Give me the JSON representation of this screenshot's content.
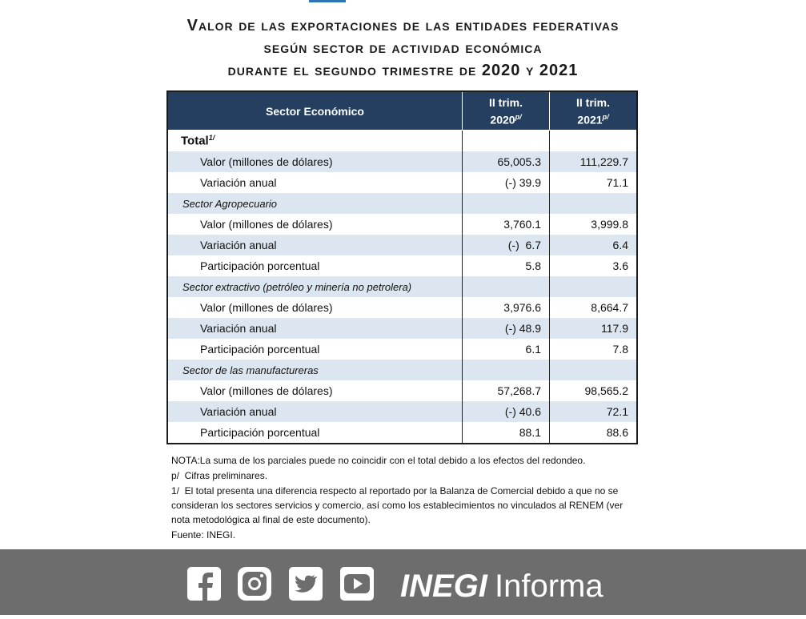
{
  "title": {
    "lines": [
      "Valor de las exportaciones de las entidades federativas",
      "según sector de actividad económica",
      "durante el segundo trimestre de 2020 y 2021"
    ]
  },
  "table": {
    "header": {
      "sector": "Sector Económico",
      "columns": [
        {
          "label": "II trim.",
          "year": "2020",
          "note": "p/"
        },
        {
          "label": "II trim.",
          "year": "2021",
          "note": "p/"
        }
      ]
    },
    "rows": [
      {
        "label": "Total",
        "note": "1/"
      },
      {
        "label": "Valor (millones de dólares)",
        "values": [
          "65,005.3",
          "111,229.7"
        ]
      },
      {
        "label": "Variación anual",
        "values": [
          "(-) 39.9",
          "71.1"
        ]
      },
      {
        "label": "Sector Agropecuario"
      },
      {
        "label": "Valor (millones de dólares)",
        "values": [
          "3,760.1",
          "3,999.8"
        ]
      },
      {
        "label": "Variación anual",
        "values": [
          "(-)  6.7",
          "6.4"
        ]
      },
      {
        "label": "Participación porcentual",
        "values": [
          "5.8",
          "3.6"
        ]
      },
      {
        "label": "Sector extractivo (petróleo y minería no petrolera)"
      },
      {
        "label": "Valor (millones de dólares)",
        "values": [
          "3,976.6",
          "8,664.7"
        ]
      },
      {
        "label": "Variación anual",
        "values": [
          "(-) 48.9",
          "117.9"
        ]
      },
      {
        "label": "Participación porcentual",
        "values": [
          "6.1",
          "7.8"
        ]
      },
      {
        "label": "Sector de las manufactureras"
      },
      {
        "label": "Valor (millones de dólares)",
        "values": [
          "57,268.7",
          "98,565.2"
        ]
      },
      {
        "label": "Variación anual",
        "values": [
          "(-) 40.6",
          "72.1"
        ]
      },
      {
        "label": "Participación porcentual",
        "values": [
          "88.1",
          "88.6"
        ]
      }
    ]
  },
  "notes": [
    "NOTA:La suma de los parciales puede no coincidir con el total debido a los efectos del redondeo.",
    "p/  Cifras preliminares.",
    "1/  El total presenta una diferencia respecto al reportado por la Balanza de Comercial debido a que no se consideran los sectores servicios y comercio, así como los establecimientos no vinculados al RENEM (ver nota metodológica al final de este documento).",
    "Fuente: INEGI."
  ],
  "footer": {
    "brand": "INEGI",
    "suffix": "Informa"
  }
}
